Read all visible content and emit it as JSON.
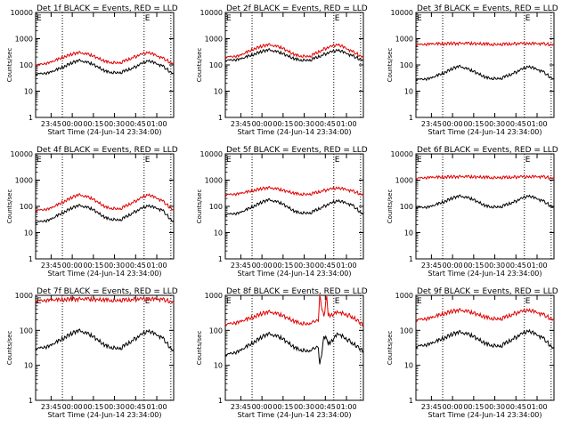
{
  "figure": {
    "colors": {
      "events": "#000000",
      "lld": "#e00000",
      "axes": "#000000",
      "background": "#ffffff"
    },
    "marker": "E"
  },
  "chart_data": [
    {
      "type": "line",
      "title": "Det 1f BLACK = Events, RED = LLD",
      "xlabel": "Start Time (24-Jun-14 23:34:00)",
      "ylabel": "Counts/sec",
      "yscale": "log",
      "ylim": [
        1,
        10000
      ],
      "xlim": [
        "23:34",
        "01:12"
      ],
      "x_ticks": [
        "23:45",
        "00:00",
        "00:15",
        "00:30",
        "00:45",
        "01:00"
      ],
      "y_ticks": [
        "1",
        "10",
        "100",
        "1000",
        "10000"
      ],
      "markers_x": [
        "23:34",
        "23:53",
        "00:51",
        "01:10"
      ],
      "events_marker_x": [
        "23:34",
        "00:51"
      ],
      "series": [
        {
          "name": "Events",
          "color": "#000000",
          "x": [
            "23:34",
            "23:44",
            "23:54",
            "00:04",
            "00:14",
            "00:24",
            "00:34",
            "00:44",
            "00:54",
            "01:04",
            "01:12"
          ],
          "values": [
            45,
            50,
            85,
            150,
            110,
            55,
            50,
            80,
            150,
            90,
            45
          ]
        },
        {
          "name": "LLD",
          "color": "#e00000",
          "x": [
            "23:34",
            "23:44",
            "23:54",
            "00:04",
            "00:14",
            "00:24",
            "00:34",
            "00:44",
            "00:54",
            "01:04",
            "01:12"
          ],
          "values": [
            100,
            120,
            200,
            300,
            230,
            130,
            120,
            200,
            310,
            180,
            110
          ]
        }
      ]
    },
    {
      "type": "line",
      "title": "Det 2f BLACK = Events, RED = LLD",
      "xlabel": "Start Time (24-Jun-14 23:34:00)",
      "ylabel": "Counts/sec",
      "yscale": "log",
      "ylim": [
        1,
        10000
      ],
      "xlim": [
        "23:34",
        "01:12"
      ],
      "x_ticks": [
        "23:45",
        "00:00",
        "00:15",
        "00:30",
        "00:45",
        "01:00"
      ],
      "y_ticks": [
        "1",
        "10",
        "100",
        "1000",
        "10000"
      ],
      "markers_x": [
        "23:34",
        "23:53",
        "00:51",
        "01:10"
      ],
      "events_marker_x": [
        "23:34",
        "00:51"
      ],
      "series": [
        {
          "name": "Events",
          "color": "#000000",
          "x": [
            "23:34",
            "23:44",
            "23:54",
            "00:04",
            "00:14",
            "00:24",
            "00:34",
            "00:44",
            "00:54",
            "01:04",
            "01:12"
          ],
          "values": [
            150,
            160,
            250,
            380,
            280,
            160,
            150,
            250,
            380,
            220,
            150
          ]
        },
        {
          "name": "LLD",
          "color": "#e00000",
          "x": [
            "23:34",
            "23:44",
            "23:54",
            "00:04",
            "00:14",
            "00:24",
            "00:34",
            "00:44",
            "00:54",
            "01:04",
            "01:12"
          ],
          "values": [
            200,
            220,
            400,
            600,
            450,
            230,
            210,
            400,
            620,
            320,
            200
          ]
        }
      ]
    },
    {
      "type": "line",
      "title": "Det 3f BLACK = Events, RED = LLD",
      "xlabel": "Start Time (24-Jun-14 23:34:00)",
      "ylabel": "Counts/sec",
      "yscale": "log",
      "ylim": [
        1,
        10000
      ],
      "xlim": [
        "23:34",
        "01:12"
      ],
      "x_ticks": [
        "23:45",
        "00:00",
        "00:15",
        "00:30",
        "00:45",
        "01:00"
      ],
      "y_ticks": [
        "1",
        "10",
        "100",
        "1000",
        "10000"
      ],
      "markers_x": [
        "23:34",
        "23:53",
        "00:51",
        "01:10"
      ],
      "events_marker_x": [
        "23:34",
        "00:51"
      ],
      "series": [
        {
          "name": "Events",
          "color": "#000000",
          "x": [
            "23:34",
            "23:44",
            "23:54",
            "00:04",
            "00:14",
            "00:24",
            "00:34",
            "00:44",
            "00:54",
            "01:04",
            "01:12"
          ],
          "values": [
            28,
            30,
            50,
            90,
            60,
            32,
            30,
            50,
            90,
            55,
            28
          ]
        },
        {
          "name": "LLD",
          "color": "#e00000",
          "x": [
            "23:34",
            "23:44",
            "23:54",
            "00:04",
            "00:14",
            "00:24",
            "00:34",
            "00:44",
            "00:54",
            "01:04",
            "01:12"
          ],
          "values": [
            600,
            620,
            640,
            660,
            650,
            620,
            610,
            640,
            670,
            630,
            600
          ]
        }
      ]
    },
    {
      "type": "line",
      "title": "Det 4f BLACK = Events, RED = LLD",
      "xlabel": "Start Time (24-Jun-14 23:34:00)",
      "ylabel": "Counts/sec",
      "yscale": "log",
      "ylim": [
        1,
        10000
      ],
      "xlim": [
        "23:34",
        "01:12"
      ],
      "x_ticks": [
        "23:45",
        "00:00",
        "00:15",
        "00:30",
        "00:45",
        "01:00"
      ],
      "y_ticks": [
        "1",
        "10",
        "100",
        "1000",
        "10000"
      ],
      "markers_x": [
        "23:34",
        "23:53",
        "00:51",
        "01:10"
      ],
      "events_marker_x": [
        "23:34",
        "00:51"
      ],
      "series": [
        {
          "name": "Events",
          "color": "#000000",
          "x": [
            "23:34",
            "23:44",
            "23:54",
            "00:04",
            "00:14",
            "00:24",
            "00:34",
            "00:44",
            "00:54",
            "01:04",
            "01:12"
          ],
          "values": [
            25,
            30,
            60,
            110,
            80,
            35,
            30,
            60,
            110,
            70,
            25
          ]
        },
        {
          "name": "LLD",
          "color": "#e00000",
          "x": [
            "23:34",
            "23:44",
            "23:54",
            "00:04",
            "00:14",
            "00:24",
            "00:34",
            "00:44",
            "00:54",
            "01:04",
            "01:12"
          ],
          "values": [
            70,
            80,
            150,
            280,
            200,
            90,
            80,
            150,
            290,
            160,
            70
          ]
        }
      ]
    },
    {
      "type": "line",
      "title": "Det 5f BLACK = Events, RED = LLD",
      "xlabel": "Start Time (24-Jun-14 23:34:00)",
      "ylabel": "Counts/sec",
      "yscale": "log",
      "ylim": [
        1,
        10000
      ],
      "xlim": [
        "23:34",
        "01:12"
      ],
      "x_ticks": [
        "23:45",
        "00:00",
        "00:15",
        "00:30",
        "00:45",
        "01:00"
      ],
      "y_ticks": [
        "1",
        "10",
        "100",
        "1000",
        "10000"
      ],
      "markers_x": [
        "23:34",
        "23:53",
        "00:51",
        "01:10"
      ],
      "events_marker_x": [
        "23:34",
        "00:51"
      ],
      "series": [
        {
          "name": "Events",
          "color": "#000000",
          "x": [
            "23:34",
            "23:44",
            "23:54",
            "00:04",
            "00:14",
            "00:24",
            "00:34",
            "00:44",
            "00:54",
            "01:04",
            "01:12"
          ],
          "values": [
            50,
            55,
            100,
            180,
            130,
            60,
            55,
            100,
            170,
            110,
            50
          ]
        },
        {
          "name": "LLD",
          "color": "#e00000",
          "x": [
            "23:34",
            "23:44",
            "23:54",
            "00:04",
            "00:14",
            "00:24",
            "00:34",
            "00:44",
            "00:54",
            "01:04",
            "01:12"
          ],
          "values": [
            280,
            300,
            400,
            520,
            420,
            300,
            290,
            400,
            520,
            380,
            280
          ]
        }
      ]
    },
    {
      "type": "line",
      "title": "Det 6f BLACK = Events, RED = LLD",
      "xlabel": "Start Time (24-Jun-14 23:34:00)",
      "ylabel": "Counts/sec",
      "yscale": "log",
      "ylim": [
        1,
        10000
      ],
      "xlim": [
        "23:34",
        "01:12"
      ],
      "x_ticks": [
        "23:45",
        "00:00",
        "00:15",
        "00:30",
        "00:45",
        "01:00"
      ],
      "y_ticks": [
        "1",
        "10",
        "100",
        "1000",
        "10000"
      ],
      "markers_x": [
        "23:34",
        "23:53",
        "00:51",
        "01:10"
      ],
      "events_marker_x": [
        "23:34",
        "00:51"
      ],
      "series": [
        {
          "name": "Events",
          "color": "#000000",
          "x": [
            "23:34",
            "23:44",
            "23:54",
            "00:04",
            "00:14",
            "00:24",
            "00:34",
            "00:44",
            "00:54",
            "01:04",
            "01:12"
          ],
          "values": [
            90,
            95,
            150,
            250,
            190,
            100,
            95,
            150,
            260,
            160,
            90
          ]
        },
        {
          "name": "LLD",
          "color": "#e00000",
          "x": [
            "23:34",
            "23:44",
            "23:54",
            "00:04",
            "00:14",
            "00:24",
            "00:34",
            "00:44",
            "00:54",
            "01:04",
            "01:12"
          ],
          "values": [
            1200,
            1250,
            1300,
            1350,
            1320,
            1270,
            1250,
            1300,
            1380,
            1320,
            1200
          ]
        }
      ]
    },
    {
      "type": "line",
      "title": "Det 7f BLACK = Events, RED = LLD",
      "xlabel": "Start Time (24-Jun-14 23:34:00)",
      "ylabel": "Counts/sec",
      "yscale": "log",
      "ylim": [
        1,
        1000
      ],
      "xlim": [
        "23:34",
        "01:12"
      ],
      "x_ticks": [
        "23:45",
        "00:00",
        "00:15",
        "00:30",
        "00:45",
        "01:00"
      ],
      "y_ticks": [
        "1",
        "10",
        "100",
        "1000"
      ],
      "markers_x": [
        "23:34",
        "23:53",
        "00:51",
        "01:10"
      ],
      "events_marker_x": [
        "23:34",
        "00:51"
      ],
      "series": [
        {
          "name": "Events",
          "color": "#000000",
          "x": [
            "23:34",
            "23:44",
            "23:54",
            "00:04",
            "00:14",
            "00:24",
            "00:34",
            "00:44",
            "00:54",
            "01:04",
            "01:12"
          ],
          "values": [
            30,
            35,
            60,
            100,
            70,
            35,
            30,
            55,
            100,
            60,
            25
          ]
        },
        {
          "name": "LLD",
          "color": "#e00000",
          "x": [
            "23:34",
            "23:44",
            "23:54",
            "00:04",
            "00:14",
            "00:24",
            "00:34",
            "00:44",
            "00:54",
            "01:04",
            "01:12"
          ],
          "values": [
            700,
            720,
            750,
            780,
            760,
            730,
            720,
            760,
            800,
            750,
            650
          ]
        }
      ]
    },
    {
      "type": "line",
      "title": "Det 8f BLACK = Events, RED = LLD",
      "xlabel": "Start Time (24-Jun-14 23:34:00)",
      "ylabel": "Counts/sec",
      "yscale": "log",
      "ylim": [
        1,
        1000
      ],
      "xlim": [
        "23:34",
        "01:12"
      ],
      "x_ticks": [
        "23:45",
        "00:00",
        "00:15",
        "00:30",
        "00:45",
        "01:00"
      ],
      "y_ticks": [
        "1",
        "10",
        "100",
        "1000"
      ],
      "markers_x": [
        "23:34",
        "23:53",
        "00:51",
        "01:10"
      ],
      "events_marker_x": [
        "23:34",
        "00:51"
      ],
      "series": [
        {
          "name": "Events",
          "color": "#000000",
          "x": [
            "23:34",
            "23:44",
            "23:54",
            "00:04",
            "00:14",
            "00:24",
            "00:34",
            "00:40",
            "00:41",
            "00:44",
            "00:46",
            "00:47",
            "00:54",
            "01:04",
            "01:12"
          ],
          "values": [
            20,
            25,
            45,
            80,
            60,
            30,
            25,
            35,
            10,
            60,
            60,
            40,
            80,
            45,
            25
          ]
        },
        {
          "name": "LLD",
          "color": "#e00000",
          "x": [
            "23:34",
            "23:44",
            "23:54",
            "00:04",
            "00:14",
            "00:24",
            "00:34",
            "00:40",
            "00:41",
            "00:44",
            "00:46",
            "00:47",
            "00:54",
            "01:04",
            "01:12"
          ],
          "values": [
            150,
            170,
            240,
            340,
            270,
            170,
            150,
            200,
            1000,
            220,
            1000,
            260,
            330,
            250,
            140
          ]
        }
      ]
    },
    {
      "type": "line",
      "title": "Det 9f BLACK = Events, RED = LLD",
      "xlabel": "Start Time (24-Jun-14 23:34:00)",
      "ylabel": "Counts/sec",
      "yscale": "log",
      "ylim": [
        1,
        1000
      ],
      "xlim": [
        "23:34",
        "01:12"
      ],
      "x_ticks": [
        "23:45",
        "00:00",
        "00:15",
        "00:30",
        "00:45",
        "01:00"
      ],
      "y_ticks": [
        "1",
        "10",
        "100",
        "1000"
      ],
      "markers_x": [
        "23:34",
        "23:53",
        "00:51",
        "01:10"
      ],
      "events_marker_x": [
        "23:34",
        "00:51"
      ],
      "series": [
        {
          "name": "Events",
          "color": "#000000",
          "x": [
            "23:34",
            "23:44",
            "23:54",
            "00:04",
            "00:14",
            "00:24",
            "00:34",
            "00:44",
            "00:54",
            "01:04",
            "01:12"
          ],
          "values": [
            35,
            40,
            60,
            90,
            70,
            40,
            35,
            60,
            100,
            60,
            30
          ]
        },
        {
          "name": "LLD",
          "color": "#e00000",
          "x": [
            "23:34",
            "23:44",
            "23:54",
            "00:04",
            "00:14",
            "00:24",
            "00:34",
            "00:44",
            "00:54",
            "01:04",
            "01:12"
          ],
          "values": [
            200,
            220,
            300,
            380,
            320,
            230,
            210,
            300,
            390,
            280,
            200
          ]
        }
      ]
    }
  ]
}
